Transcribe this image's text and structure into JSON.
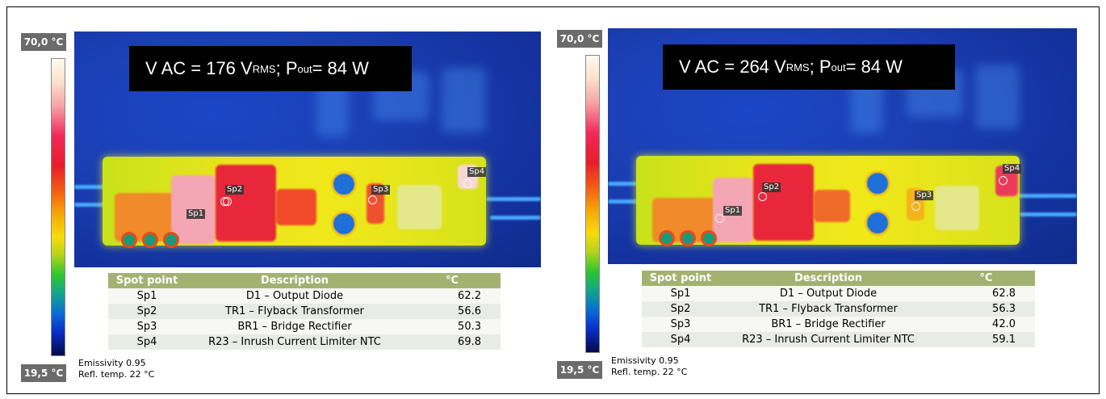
{
  "panels": [
    {
      "scale_max": "70,0 °C",
      "scale_min": "19,5 °C",
      "caption": {
        "prefix": "V AC = 176 V",
        "sub1": "RMS",
        "mid": " ; P",
        "sub2": "out",
        "suffix": " = 84 W"
      },
      "spots": [
        "Sp1",
        "Sp2",
        "Sp3",
        "Sp4"
      ],
      "table": {
        "headers": [
          "Spot point",
          "Description",
          "°C"
        ],
        "rows": [
          [
            "Sp1",
            "D1 – Output Diode",
            "62.2"
          ],
          [
            "Sp2",
            "TR1 – Flyback Transformer",
            "56.6"
          ],
          [
            "Sp3",
            "BR1 – Bridge Rectifier",
            "50.3"
          ],
          [
            "Sp4",
            "R23 – Inrush Current Limiter NTC",
            "69.8"
          ]
        ]
      },
      "emissivity": "Emissivity  0.95",
      "refl_temp": "Refl. temp. 22 °C"
    },
    {
      "scale_max": "70,0 °C",
      "scale_min": "19,5 °C",
      "caption": {
        "prefix": "V AC = 264 V",
        "sub1": "RMS",
        "mid": " ; P",
        "sub2": "out",
        "suffix": " = 84 W"
      },
      "spots": [
        "Sp1",
        "Sp2",
        "Sp3",
        "Sp4"
      ],
      "table": {
        "headers": [
          "Spot point",
          "Description",
          "°C"
        ],
        "rows": [
          [
            "Sp1",
            "D1 – Output Diode",
            "62.8"
          ],
          [
            "Sp2",
            "TR1 – Flyback Transformer",
            "56.3"
          ],
          [
            "Sp3",
            "BR1 – Bridge Rectifier",
            "42.0"
          ],
          [
            "Sp4",
            "R23 – Inrush Current Limiter NTC",
            "59.1"
          ]
        ]
      },
      "emissivity": "Emissivity  0.95",
      "refl_temp": "Refl. temp. 22 °C"
    }
  ]
}
